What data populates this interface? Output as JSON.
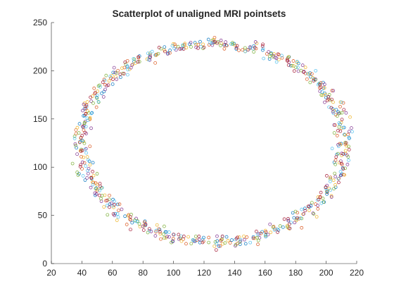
{
  "chart_data": {
    "type": "scatter",
    "title": "Scatterplot of unaligned MRI pointsets",
    "xlabel": "",
    "ylabel": "",
    "xlim": [
      20,
      220
    ],
    "ylim": [
      0,
      250
    ],
    "xticks": [
      20,
      40,
      60,
      80,
      100,
      120,
      140,
      160,
      180,
      200,
      220
    ],
    "yticks": [
      0,
      50,
      100,
      150,
      200,
      250
    ],
    "grid": false,
    "legend": "none",
    "marker": "open-circle",
    "ellipse_fit": {
      "cx": 126,
      "cy": 125,
      "rx": 86,
      "ry": 103
    },
    "points_per_series": 100,
    "noise": 3,
    "series": [
      {
        "color": "#0072BD"
      },
      {
        "color": "#D95319"
      },
      {
        "color": "#EDB120"
      },
      {
        "color": "#7E2F8E"
      },
      {
        "color": "#77AC30"
      },
      {
        "color": "#4DBEEE"
      },
      {
        "color": "#A2142F"
      }
    ]
  }
}
